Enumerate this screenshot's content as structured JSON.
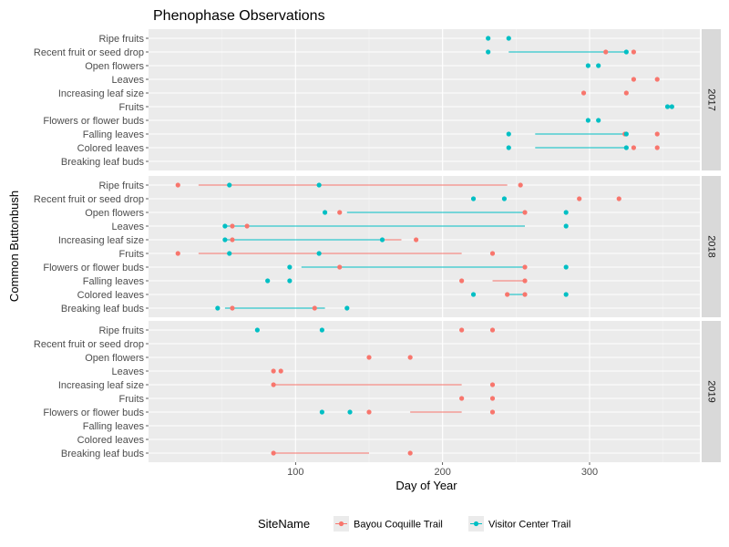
{
  "chart_data": {
    "type": "scatter",
    "title": "Phenophase Observations",
    "xlabel": "Day of Year",
    "ylabel": "Common Buttonbush",
    "xlim": [
      0,
      375
    ],
    "xticks": [
      100,
      200,
      300
    ],
    "grid": true,
    "categories": [
      "Breaking leaf buds",
      "Colored leaves",
      "Falling leaves",
      "Flowers or flower buds",
      "Fruits",
      "Increasing leaf size",
      "Leaves",
      "Open flowers",
      "Recent fruit or seed drop",
      "Ripe fruits"
    ],
    "legend": {
      "title": "SiteName",
      "position": "bottom",
      "entries": [
        {
          "name": "Bayou Coquille Trail",
          "color": "#F8766D"
        },
        {
          "name": "Visitor Center Trail",
          "color": "#00BFC4"
        }
      ]
    },
    "panels": [
      {
        "label": "2017",
        "series": [
          {
            "name": "Bayou Coquille Trail",
            "points": [
              {
                "y": "Recent fruit or seed drop",
                "x": [
                  311,
                  330
                ]
              },
              {
                "y": "Leaves",
                "x": [
                  330,
                  346
                ]
              },
              {
                "y": "Increasing leaf size",
                "x": [
                  296,
                  325
                ]
              },
              {
                "y": "Falling leaves",
                "x": [
                  324,
                  346
                ]
              },
              {
                "y": "Colored leaves",
                "x": [
                  330,
                  346
                ]
              }
            ],
            "segments": []
          },
          {
            "name": "Visitor Center Trail",
            "points": [
              {
                "y": "Ripe fruits",
                "x": [
                  231,
                  245
                ]
              },
              {
                "y": "Recent fruit or seed drop",
                "x": [
                  231,
                  325
                ]
              },
              {
                "y": "Open flowers",
                "x": [
                  299,
                  306
                ]
              },
              {
                "y": "Fruits",
                "x": [
                  353,
                  356
                ]
              },
              {
                "y": "Flowers or flower buds",
                "x": [
                  299,
                  306
                ]
              },
              {
                "y": "Falling leaves",
                "x": [
                  245,
                  325
                ]
              },
              {
                "y": "Colored leaves",
                "x": [
                  245,
                  325
                ]
              }
            ],
            "segments": [
              {
                "y": "Recent fruit or seed drop",
                "x1": 245,
                "x2": 325
              },
              {
                "y": "Falling leaves",
                "x1": 263,
                "x2": 325
              },
              {
                "y": "Colored leaves",
                "x1": 263,
                "x2": 325
              }
            ]
          }
        ]
      },
      {
        "label": "2018",
        "series": [
          {
            "name": "Bayou Coquille Trail",
            "points": [
              {
                "y": "Ripe fruits",
                "x": [
                  20,
                  253
                ]
              },
              {
                "y": "Recent fruit or seed drop",
                "x": [
                  293,
                  320
                ]
              },
              {
                "y": "Open flowers",
                "x": [
                  130,
                  256
                ]
              },
              {
                "y": "Leaves",
                "x": [
                  57,
                  67
                ]
              },
              {
                "y": "Increasing leaf size",
                "x": [
                  57,
                  182
                ]
              },
              {
                "y": "Fruits",
                "x": [
                  20,
                  234
                ]
              },
              {
                "y": "Flowers or flower buds",
                "x": [
                  130,
                  256
                ]
              },
              {
                "y": "Falling leaves",
                "x": [
                  213,
                  256
                ]
              },
              {
                "y": "Colored leaves",
                "x": [
                  244,
                  256
                ]
              },
              {
                "y": "Breaking leaf buds",
                "x": [
                  57,
                  113
                ]
              }
            ],
            "segments": [
              {
                "y": "Ripe fruits",
                "x1": 34,
                "x2": 244
              },
              {
                "y": "Fruits",
                "x1": 34,
                "x2": 213
              },
              {
                "y": "Increasing leaf size",
                "x1": 67,
                "x2": 172
              },
              {
                "y": "Falling leaves",
                "x1": 234,
                "x2": 256
              },
              {
                "y": "Breaking leaf buds",
                "x1": 57,
                "x2": 113
              }
            ]
          },
          {
            "name": "Visitor Center Trail",
            "points": [
              {
                "y": "Ripe fruits",
                "x": [
                  55,
                  116
                ]
              },
              {
                "y": "Recent fruit or seed drop",
                "x": [
                  221,
                  242
                ]
              },
              {
                "y": "Open flowers",
                "x": [
                  120,
                  284
                ]
              },
              {
                "y": "Leaves",
                "x": [
                  52,
                  284
                ]
              },
              {
                "y": "Increasing leaf size",
                "x": [
                  52,
                  159
                ]
              },
              {
                "y": "Fruits",
                "x": [
                  55,
                  116
                ]
              },
              {
                "y": "Flowers or flower buds",
                "x": [
                  96,
                  284
                ]
              },
              {
                "y": "Falling leaves",
                "x": [
                  81,
                  96
                ]
              },
              {
                "y": "Colored leaves",
                "x": [
                  221,
                  284
                ]
              },
              {
                "y": "Breaking leaf buds",
                "x": [
                  47,
                  135
                ]
              }
            ],
            "segments": [
              {
                "y": "Open flowers",
                "x1": 135,
                "x2": 256
              },
              {
                "y": "Leaves",
                "x1": 52,
                "x2": 256
              },
              {
                "y": "Increasing leaf size",
                "x1": 52,
                "x2": 159
              },
              {
                "y": "Flowers or flower buds",
                "x1": 104,
                "x2": 256
              },
              {
                "y": "Colored leaves",
                "x1": 244,
                "x2": 256
              },
              {
                "y": "Breaking leaf buds",
                "x1": 52,
                "x2": 120
              }
            ]
          }
        ]
      },
      {
        "label": "2019",
        "series": [
          {
            "name": "Bayou Coquille Trail",
            "points": [
              {
                "y": "Ripe fruits",
                "x": [
                  213,
                  234
                ]
              },
              {
                "y": "Open flowers",
                "x": [
                  150,
                  178
                ]
              },
              {
                "y": "Leaves",
                "x": [
                  85,
                  90
                ]
              },
              {
                "y": "Increasing leaf size",
                "x": [
                  85,
                  234
                ]
              },
              {
                "y": "Fruits",
                "x": [
                  213,
                  234
                ]
              },
              {
                "y": "Flowers or flower buds",
                "x": [
                  150,
                  234
                ]
              },
              {
                "y": "Breaking leaf buds",
                "x": [
                  85,
                  178
                ]
              }
            ],
            "segments": [
              {
                "y": "Increasing leaf size",
                "x1": 85,
                "x2": 213
              },
              {
                "y": "Flowers or flower buds",
                "x1": 178,
                "x2": 213
              },
              {
                "y": "Breaking leaf buds",
                "x1": 85,
                "x2": 150
              }
            ]
          },
          {
            "name": "Visitor Center Trail",
            "points": [
              {
                "y": "Ripe fruits",
                "x": [
                  74,
                  118
                ]
              },
              {
                "y": "Flowers or flower buds",
                "x": [
                  118,
                  137
                ]
              }
            ],
            "segments": []
          }
        ]
      }
    ]
  }
}
